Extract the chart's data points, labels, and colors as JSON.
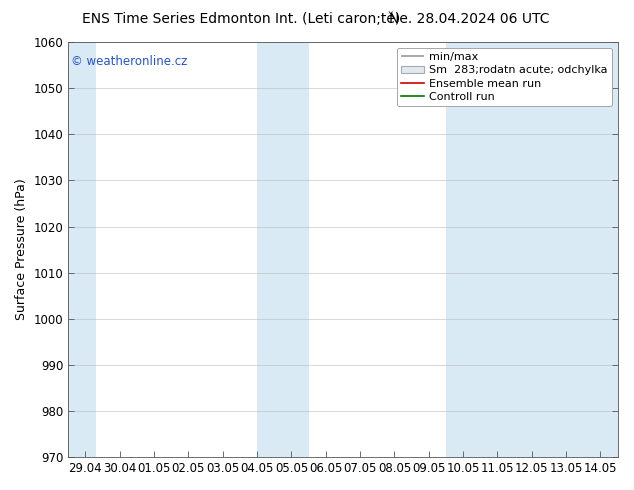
{
  "title_left": "ENS Time Series Edmonton Int. (Leti caron;tě)",
  "title_right": "Ne. 28.04.2024 06 UTC",
  "ylabel": "Surface Pressure (hPa)",
  "ylim": [
    970,
    1060
  ],
  "yticks": [
    970,
    980,
    990,
    1000,
    1010,
    1020,
    1030,
    1040,
    1050,
    1060
  ],
  "xtick_labels": [
    "29.04",
    "30.04",
    "01.05",
    "02.05",
    "03.05",
    "04.05",
    "05.05",
    "06.05",
    "07.05",
    "08.05",
    "09.05",
    "10.05",
    "11.05",
    "12.05",
    "13.05",
    "14.05"
  ],
  "bg_color": "#ffffff",
  "plot_bg_color": "#ffffff",
  "band_color": "#daeaf5",
  "bands_xdata": [
    [
      -0.5,
      0.3
    ],
    [
      5.0,
      6.5
    ],
    [
      10.5,
      15.5
    ]
  ],
  "legend_labels": [
    "min/max",
    "Sm  283;rodatn acute; odchylka",
    "Ensemble mean run",
    "Controll run"
  ],
  "legend_line_colors": [
    "#999999",
    "#cccccc",
    "#cc0000",
    "#007700"
  ],
  "watermark": "© weatheronline.cz",
  "watermark_color": "#2255cc",
  "title_fontsize": 10,
  "axis_label_fontsize": 9,
  "tick_fontsize": 8.5,
  "legend_fontsize": 8
}
